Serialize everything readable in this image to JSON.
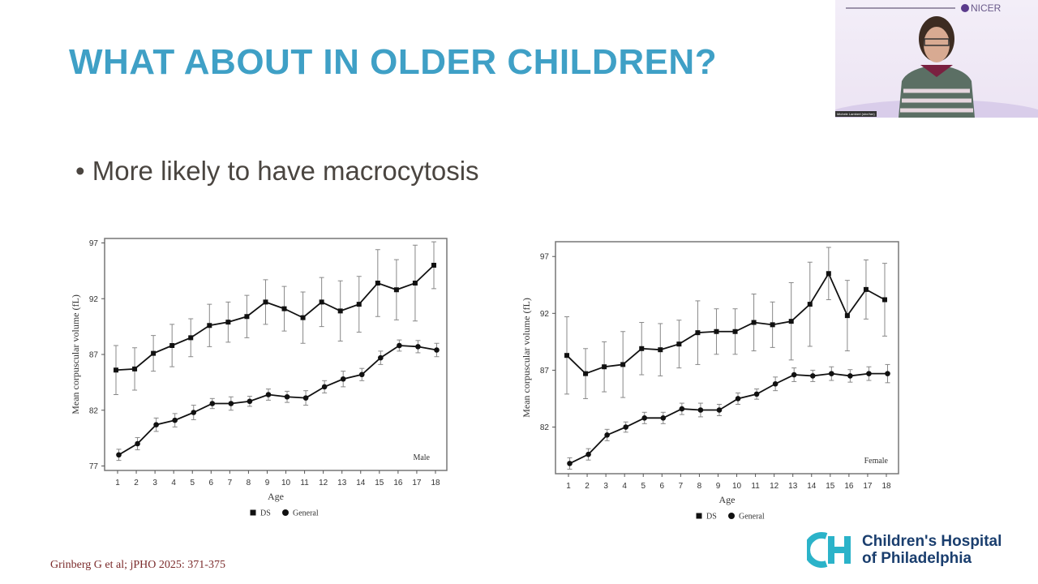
{
  "slide": {
    "title": "WHAT ABOUT IN OLDER CHILDREN?",
    "bullet": "• More likely to have macrocytosis",
    "citation": "Grinberg G et al; jPHO 2025: 371-375",
    "title_color": "#3fa0c6"
  },
  "logo": {
    "line1": "Children's Hospital",
    "line2": "of Philadelphia",
    "mark": "CH",
    "color": "#1a3e6e",
    "accent": "#2bb3c9"
  },
  "webcam": {
    "brand": "NICER",
    "participant_name": "Michele Lambert (she/her)"
  },
  "chart_data": [
    {
      "type": "line",
      "panel_label": "Male",
      "xlabel": "Age",
      "ylabel": "Mean corpuscular volume (fL)",
      "x": [
        1,
        2,
        3,
        4,
        5,
        6,
        7,
        8,
        9,
        10,
        11,
        12,
        13,
        14,
        15,
        16,
        17,
        18
      ],
      "yticks": [
        77,
        82,
        87,
        92,
        97
      ],
      "ylim": [
        76.6,
        97.4
      ],
      "grid": false,
      "legend_position": "bottom",
      "series": [
        {
          "name": "DS",
          "marker": "square",
          "values": [
            85.6,
            85.7,
            87.1,
            87.8,
            88.5,
            89.6,
            89.9,
            90.4,
            91.7,
            91.1,
            90.3,
            91.7,
            90.9,
            91.5,
            93.4,
            92.8,
            93.4,
            95.0
          ],
          "error": [
            2.2,
            1.9,
            1.6,
            1.9,
            1.7,
            1.9,
            1.8,
            1.9,
            2.0,
            2.0,
            2.3,
            2.2,
            2.7,
            2.5,
            3.0,
            2.7,
            3.4,
            2.1
          ]
        },
        {
          "name": "General",
          "marker": "circle",
          "values": [
            78.0,
            79.0,
            80.7,
            81.1,
            81.8,
            82.6,
            82.6,
            82.8,
            83.4,
            83.2,
            83.1,
            84.1,
            84.8,
            85.2,
            86.7,
            87.8,
            87.7,
            87.4
          ],
          "error": [
            0.5,
            0.55,
            0.6,
            0.6,
            0.65,
            0.45,
            0.6,
            0.45,
            0.5,
            0.5,
            0.65,
            0.55,
            0.7,
            0.55,
            0.6,
            0.5,
            0.55,
            0.6
          ]
        }
      ]
    },
    {
      "type": "line",
      "panel_label": "Female",
      "xlabel": "Age",
      "ylabel": "Mean corpuscular volume (fL)",
      "x": [
        1,
        2,
        3,
        4,
        5,
        6,
        7,
        8,
        9,
        10,
        11,
        12,
        13,
        14,
        15,
        16,
        17,
        18
      ],
      "yticks": [
        82,
        87,
        92,
        97
      ],
      "ylim": [
        77.9,
        98.3
      ],
      "grid": false,
      "legend_position": "bottom",
      "series": [
        {
          "name": "DS",
          "marker": "square",
          "values": [
            88.3,
            86.7,
            87.3,
            87.5,
            88.9,
            88.8,
            89.3,
            90.3,
            90.4,
            90.4,
            91.2,
            91.0,
            91.3,
            92.8,
            95.5,
            91.8,
            94.1,
            93.2
          ],
          "error": [
            3.4,
            2.2,
            2.2,
            2.9,
            2.3,
            2.3,
            2.1,
            2.8,
            2.0,
            2.0,
            2.5,
            2.0,
            3.4,
            3.7,
            2.3,
            3.1,
            2.6,
            3.2
          ]
        },
        {
          "name": "General",
          "marker": "circle",
          "values": [
            78.8,
            79.6,
            81.3,
            82.0,
            82.8,
            82.8,
            83.6,
            83.5,
            83.5,
            84.5,
            84.9,
            85.8,
            86.6,
            86.5,
            86.7,
            86.5,
            86.7,
            86.7
          ],
          "error": [
            0.5,
            0.5,
            0.5,
            0.45,
            0.5,
            0.5,
            0.5,
            0.6,
            0.5,
            0.5,
            0.45,
            0.6,
            0.6,
            0.5,
            0.6,
            0.55,
            0.6,
            0.8
          ]
        }
      ]
    }
  ]
}
